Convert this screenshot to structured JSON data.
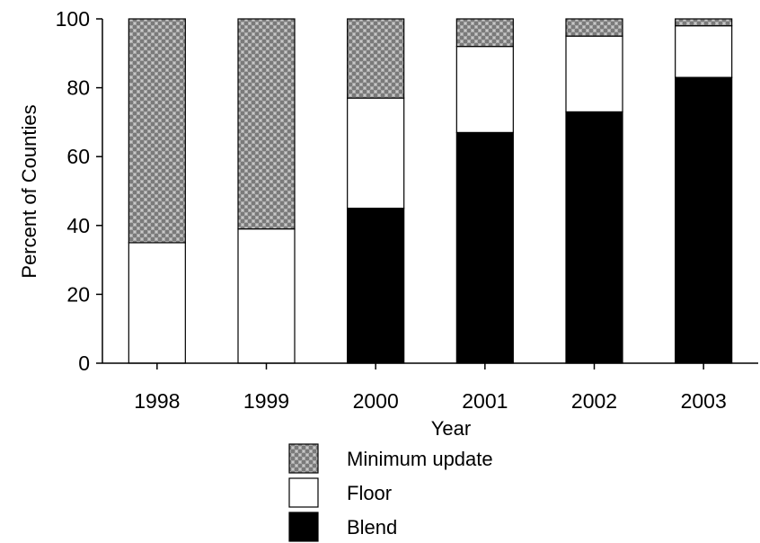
{
  "chart_data": {
    "type": "bar",
    "stacked": true,
    "categories": [
      "1998",
      "1999",
      "2000",
      "2001",
      "2002",
      "2003"
    ],
    "series": [
      {
        "name": "Blend",
        "values": [
          0,
          0,
          45,
          67,
          73,
          83
        ],
        "color": "#000000"
      },
      {
        "name": "Floor",
        "values": [
          35,
          39,
          32,
          25,
          22,
          15
        ],
        "color": "#ffffff"
      },
      {
        "name": "Minimum update",
        "values": [
          65,
          61,
          23,
          8,
          5,
          2
        ],
        "color": "#9a9a9a"
      }
    ],
    "legend_order": [
      "Minimum update",
      "Floor",
      "Blend"
    ],
    "xlabel": "Year",
    "ylabel": "Percent of Counties",
    "ylim": [
      0,
      100
    ],
    "yticks": [
      0,
      20,
      40,
      60,
      80,
      100
    ],
    "legend_position": "bottom",
    "grid": false
  }
}
